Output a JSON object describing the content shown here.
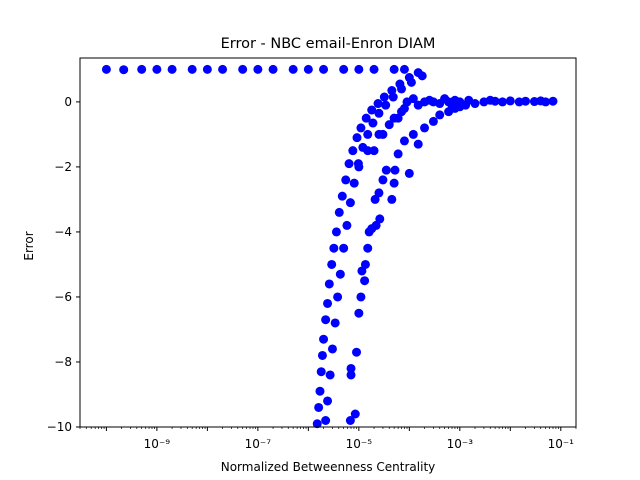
{
  "chart_data": {
    "type": "scatter",
    "title": "Error - NBC email-Enron DIAM",
    "xlabel": "Normalized Betweenness Centrality",
    "ylabel": "Error",
    "xscale": "log",
    "xlim": [
      3e-11,
      0.2
    ],
    "ylim": [
      -10,
      1.35
    ],
    "grid": false,
    "legend": "none",
    "marker_color": "#0000ff",
    "x_ticks": [
      {
        "value": 1e-09,
        "label": "10⁻⁹"
      },
      {
        "value": 1e-07,
        "label": "10⁻⁷"
      },
      {
        "value": 1e-05,
        "label": "10⁻⁵"
      },
      {
        "value": 0.001,
        "label": "10⁻³"
      },
      {
        "value": 0.1,
        "label": "10⁻¹"
      }
    ],
    "y_ticks": [
      {
        "value": 0,
        "label": "0"
      },
      {
        "value": -2,
        "label": "−2"
      },
      {
        "value": -4,
        "label": "−4"
      },
      {
        "value": -6,
        "label": "−6"
      },
      {
        "value": -8,
        "label": "−8"
      },
      {
        "value": -10,
        "label": "−10"
      }
    ],
    "points": [
      [
        1e-10,
        1.0
      ],
      [
        2.2e-10,
        0.99
      ],
      [
        5e-10,
        1.0
      ],
      [
        1e-09,
        1.0
      ],
      [
        2e-09,
        1.0
      ],
      [
        5e-09,
        1.0
      ],
      [
        1e-08,
        1.0
      ],
      [
        2e-08,
        1.0
      ],
      [
        5e-08,
        1.0
      ],
      [
        1e-07,
        1.0
      ],
      [
        2e-07,
        1.0
      ],
      [
        5e-07,
        1.0
      ],
      [
        1e-06,
        1.0
      ],
      [
        2e-06,
        1.0
      ],
      [
        5e-06,
        1.0
      ],
      [
        1e-05,
        1.0
      ],
      [
        2e-05,
        1.0
      ],
      [
        5e-05,
        1.0
      ],
      [
        8e-05,
        1.0
      ],
      [
        1.5e-06,
        -9.9
      ],
      [
        1.6e-06,
        -9.4
      ],
      [
        1.7e-06,
        -8.9
      ],
      [
        1.8e-06,
        -8.3
      ],
      [
        1.9e-06,
        -7.8
      ],
      [
        2e-06,
        -7.3
      ],
      [
        2.2e-06,
        -6.7
      ],
      [
        2.4e-06,
        -6.2
      ],
      [
        2.6e-06,
        -5.6
      ],
      [
        2.9e-06,
        -5.0
      ],
      [
        3.2e-06,
        -4.5
      ],
      [
        3.6e-06,
        -4.0
      ],
      [
        4.1e-06,
        -3.4
      ],
      [
        4.7e-06,
        -2.9
      ],
      [
        5.5e-06,
        -2.4
      ],
      [
        6.4e-06,
        -1.9
      ],
      [
        7.6e-06,
        -1.5
      ],
      [
        9.2e-06,
        -1.1
      ],
      [
        1.1e-05,
        -0.8
      ],
      [
        1.4e-05,
        -0.5
      ],
      [
        1.8e-05,
        -0.25
      ],
      [
        2.4e-05,
        -0.05
      ],
      [
        3.2e-05,
        0.15
      ],
      [
        4.5e-05,
        0.35
      ],
      [
        6.5e-05,
        0.55
      ],
      [
        0.0001,
        0.75
      ],
      [
        0.00015,
        0.9
      ],
      [
        2.2e-06,
        -9.8
      ],
      [
        2.4e-06,
        -9.2
      ],
      [
        2.7e-06,
        -8.4
      ],
      [
        3e-06,
        -7.6
      ],
      [
        3.4e-06,
        -6.8
      ],
      [
        3.8e-06,
        -6.0
      ],
      [
        4.3e-06,
        -5.3
      ],
      [
        5e-06,
        -4.5
      ],
      [
        5.8e-06,
        -3.8
      ],
      [
        6.8e-06,
        -3.1
      ],
      [
        8.1e-06,
        -2.5
      ],
      [
        9.8e-06,
        -1.9
      ],
      [
        1.2e-05,
        -1.4
      ],
      [
        1.5e-05,
        -1.0
      ],
      [
        1.9e-05,
        -0.65
      ],
      [
        2.5e-05,
        -0.35
      ],
      [
        3.4e-05,
        -0.1
      ],
      [
        4.8e-05,
        0.15
      ],
      [
        7e-05,
        0.4
      ],
      [
        0.00011,
        0.6
      ],
      [
        0.00018,
        0.8
      ],
      [
        7e-06,
        -8.4
      ],
      [
        7e-06,
        -8.2
      ],
      [
        9e-06,
        -7.7
      ],
      [
        1e-05,
        -6.5
      ],
      [
        1.1e-05,
        -6.0
      ],
      [
        1.3e-05,
        -5.5
      ],
      [
        1.15e-05,
        -5.2
      ],
      [
        1.35e-05,
        -5.0
      ],
      [
        1.5e-05,
        -4.5
      ],
      [
        1.6e-05,
        -4.0
      ],
      [
        1.8e-05,
        -3.9
      ],
      [
        2.2e-05,
        -3.8
      ],
      [
        2.6e-05,
        -3.6
      ],
      [
        2.1e-05,
        -3.0
      ],
      [
        2.5e-05,
        -2.8
      ],
      [
        3e-05,
        -2.4
      ],
      [
        3.5e-05,
        -2.1
      ],
      [
        4.5e-05,
        -3.0
      ],
      [
        5e-05,
        -2.5
      ],
      [
        5.2e-05,
        -2.1
      ],
      [
        6e-05,
        -1.6
      ],
      [
        8e-05,
        -1.2
      ],
      [
        0.0001,
        -2.2
      ],
      [
        0.00012,
        -1.0
      ],
      [
        0.00015,
        -1.3
      ],
      [
        0.0002,
        -0.8
      ],
      [
        0.0003,
        -0.6
      ],
      [
        0.0004,
        -0.4
      ],
      [
        0.0006,
        -0.3
      ],
      [
        0.0008,
        -0.2
      ],
      [
        0.001,
        -0.15
      ],
      [
        0.0013,
        -0.1
      ],
      [
        8.5e-06,
        -9.6
      ],
      [
        6.8e-06,
        -9.8
      ],
      [
        1e-05,
        -2.0
      ],
      [
        1.5e-05,
        -1.5
      ],
      [
        2e-05,
        -1.5
      ],
      [
        2.5e-05,
        -1.0
      ],
      [
        3e-05,
        -1.0
      ],
      [
        4e-05,
        -0.7
      ],
      [
        5e-05,
        -0.5
      ],
      [
        6e-05,
        -0.5
      ],
      [
        7e-05,
        -0.3
      ],
      [
        8e-05,
        -0.2
      ],
      [
        9e-05,
        0.0
      ],
      [
        0.00012,
        0.1
      ],
      [
        0.00015,
        -0.1
      ],
      [
        0.0002,
        0.0
      ],
      [
        0.00025,
        0.05
      ],
      [
        0.0003,
        0.0
      ],
      [
        0.0004,
        -0.05
      ],
      [
        0.0005,
        0.1
      ],
      [
        0.0006,
        0.0
      ],
      [
        0.0007,
        -0.1
      ],
      [
        0.0008,
        0.05
      ],
      [
        0.001,
        0.0
      ],
      [
        0.0015,
        0.05
      ],
      [
        0.002,
        -0.05
      ],
      [
        0.003,
        0.0
      ],
      [
        0.004,
        0.05
      ],
      [
        0.005,
        0.02
      ],
      [
        0.007,
        0.0
      ],
      [
        0.01,
        0.03
      ],
      [
        0.015,
        0.0
      ],
      [
        0.02,
        0.02
      ],
      [
        0.03,
        0.01
      ],
      [
        0.04,
        0.03
      ],
      [
        0.05,
        0.0
      ],
      [
        0.07,
        0.02
      ]
    ]
  }
}
